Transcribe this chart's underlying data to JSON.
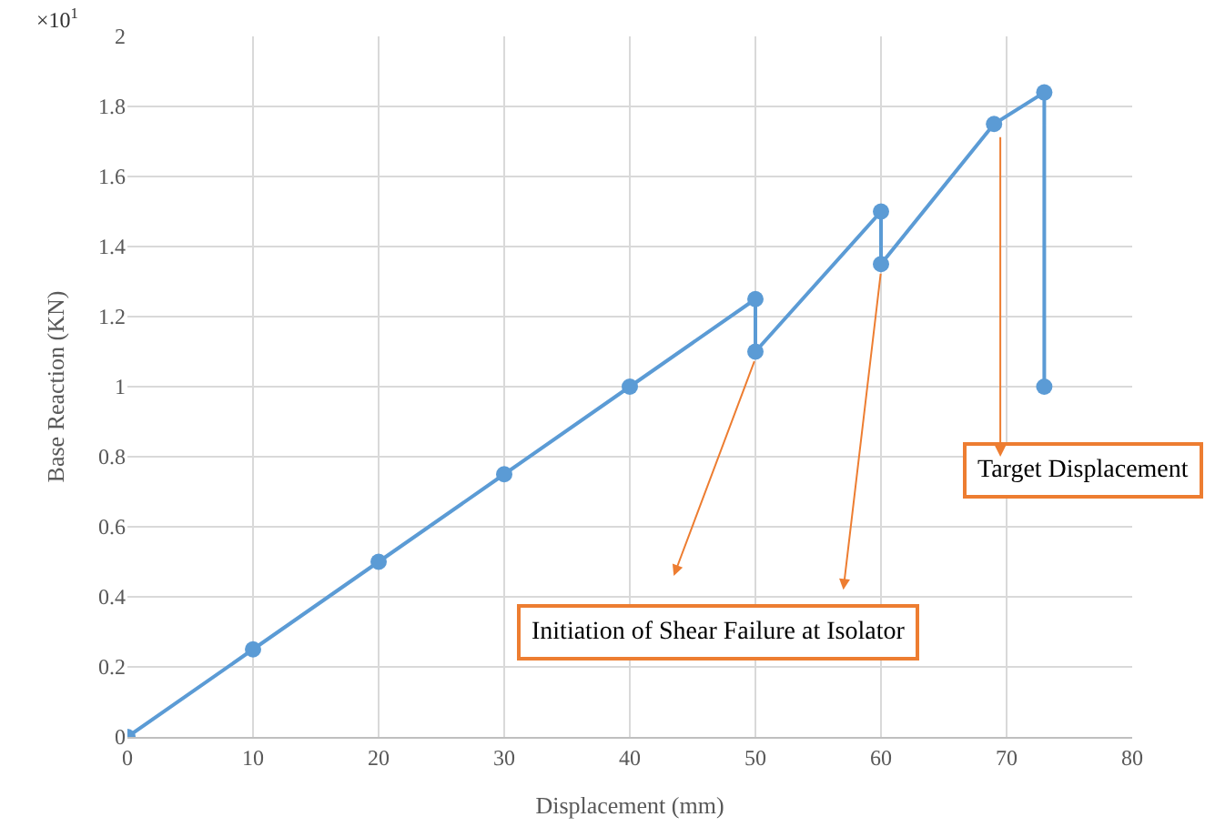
{
  "chart_data": {
    "type": "line",
    "xlabel": "Displacement (mm)",
    "ylabel": "Base Reaction (KN)",
    "x": [
      0,
      10,
      20,
      30,
      40,
      50,
      50,
      60,
      60,
      69,
      73,
      73
    ],
    "series": [
      {
        "color": "#5b9bd5",
        "values": [
          0,
          0.25,
          0.5,
          0.75,
          1.0,
          1.25,
          1.1,
          1.5,
          1.35,
          1.75,
          1.84,
          1.0
        ]
      }
    ],
    "xlim": [
      0,
      80
    ],
    "xticks": [
      0,
      10,
      20,
      30,
      40,
      50,
      60,
      70,
      80
    ],
    "ylim": [
      0,
      2
    ],
    "yticks": [
      0,
      0.2,
      0.4,
      0.6,
      0.8,
      1,
      1.2,
      1.4,
      1.6,
      1.8,
      2
    ],
    "grid": true,
    "marker": "circle",
    "line_style": "solid",
    "annotations": [
      "×10$^{1}$",
      "Initiation of Shear Failure at Isolator",
      "Target Displacement"
    ]
  }
}
